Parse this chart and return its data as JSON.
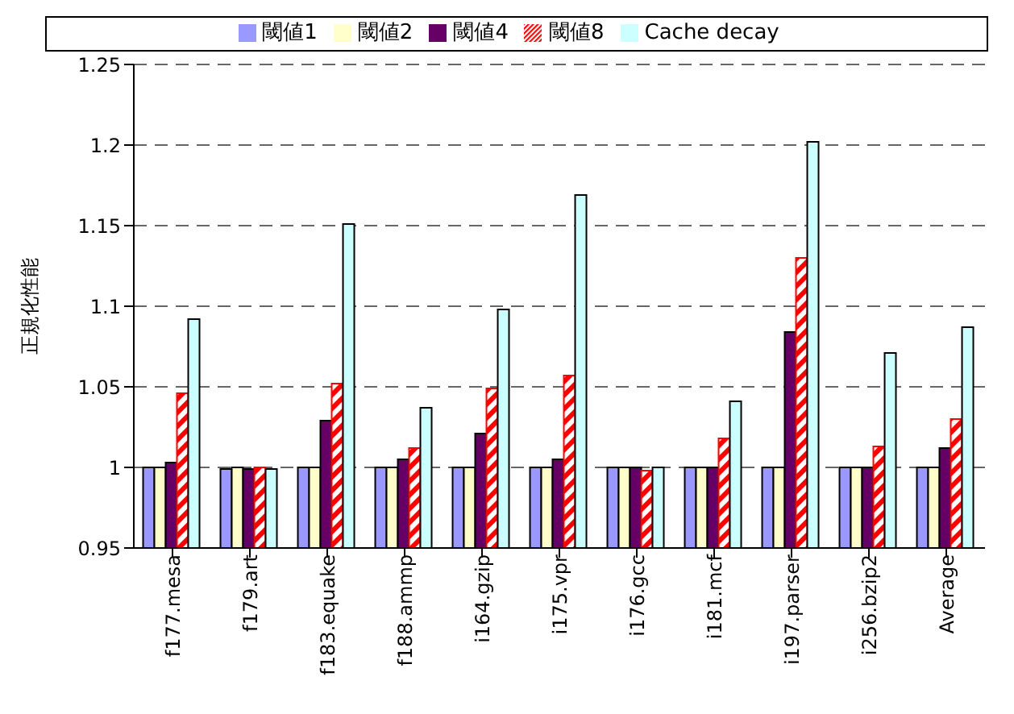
{
  "chart_data": {
    "type": "bar",
    "ylabel": "正規化性能",
    "categories": [
      "f177.mesa",
      "f179.art",
      "f183.equake",
      "f188.ammp",
      "i164.gzip",
      "i175.vpr",
      "i176.gcc",
      "i181.mcf",
      "i197.parser",
      "i256.bzip2",
      "Average"
    ],
    "series": [
      {
        "name": "閾値1",
        "color": "#9999ff",
        "values": [
          1,
          0.999,
          1,
          1,
          1,
          1,
          1,
          1,
          1,
          1,
          1
        ]
      },
      {
        "name": "閾値2",
        "color": "#ffffcc",
        "values": [
          1,
          1,
          1,
          1,
          1,
          1,
          1,
          1,
          1,
          1,
          1
        ]
      },
      {
        "name": "閾値4",
        "color": "#660066",
        "values": [
          1.003,
          0.999,
          1.029,
          1.005,
          1.021,
          1.005,
          1,
          1,
          1.084,
          1,
          1.012
        ]
      },
      {
        "name": "閾値8",
        "color": "#ff0000",
        "values": [
          1.046,
          1,
          1.052,
          1.012,
          1.049,
          1.057,
          0.998,
          1.018,
          1.13,
          1.013,
          1.03
        ]
      },
      {
        "name": "Cache decay",
        "color": "#ccffff",
        "values": [
          1.092,
          0.999,
          1.151,
          1.037,
          1.098,
          1.169,
          1,
          1.041,
          1.202,
          1.071,
          1.087
        ]
      }
    ],
    "ylim": [
      0.95,
      1.25
    ],
    "yticks": [
      0.95,
      1,
      1.05,
      1.1,
      1.15,
      1.2,
      1.25
    ],
    "grid": "y",
    "legend": "top"
  }
}
